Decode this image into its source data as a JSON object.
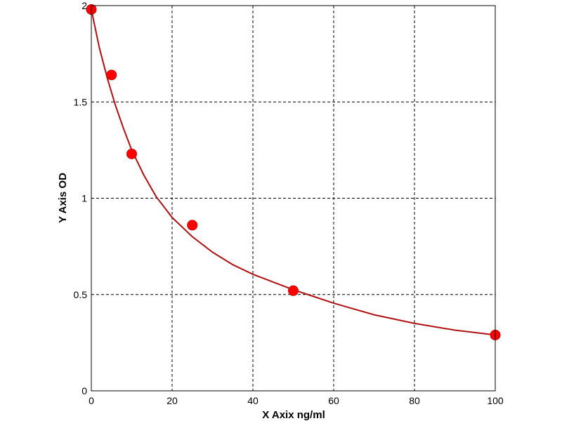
{
  "chart_data": {
    "type": "scatter",
    "title": "",
    "xlabel": "X Axix ng/ml",
    "ylabel": "Y Axis OD",
    "xlim": [
      0,
      100
    ],
    "ylim": [
      0,
      2
    ],
    "x_ticks": [
      0,
      20,
      40,
      60,
      80,
      100
    ],
    "y_ticks": [
      0,
      0.5,
      1,
      1.5,
      2
    ],
    "x_tick_labels": [
      "0",
      "20",
      "40",
      "60",
      "80",
      "100"
    ],
    "y_tick_labels": [
      "0",
      "0.5",
      "1",
      "1.5",
      "2"
    ],
    "grid": true,
    "series": [
      {
        "x": [
          0,
          5,
          10,
          25,
          50,
          100
        ],
        "y": [
          1.98,
          1.64,
          1.23,
          0.86,
          0.52,
          0.29
        ]
      }
    ],
    "fit_curve": {
      "x": [
        0,
        2,
        4,
        6,
        8,
        10,
        13,
        16,
        20,
        25,
        30,
        35,
        40,
        45,
        50,
        55,
        60,
        70,
        80,
        90,
        100
      ],
      "y": [
        1.98,
        1.78,
        1.62,
        1.48,
        1.36,
        1.25,
        1.12,
        1.01,
        0.9,
        0.8,
        0.72,
        0.655,
        0.605,
        0.565,
        0.525,
        0.49,
        0.455,
        0.395,
        0.35,
        0.315,
        0.29
      ]
    },
    "colors": {
      "series": "#ff0000",
      "curve": "#b01010",
      "grid": "#000000",
      "axes": "#000000"
    }
  }
}
